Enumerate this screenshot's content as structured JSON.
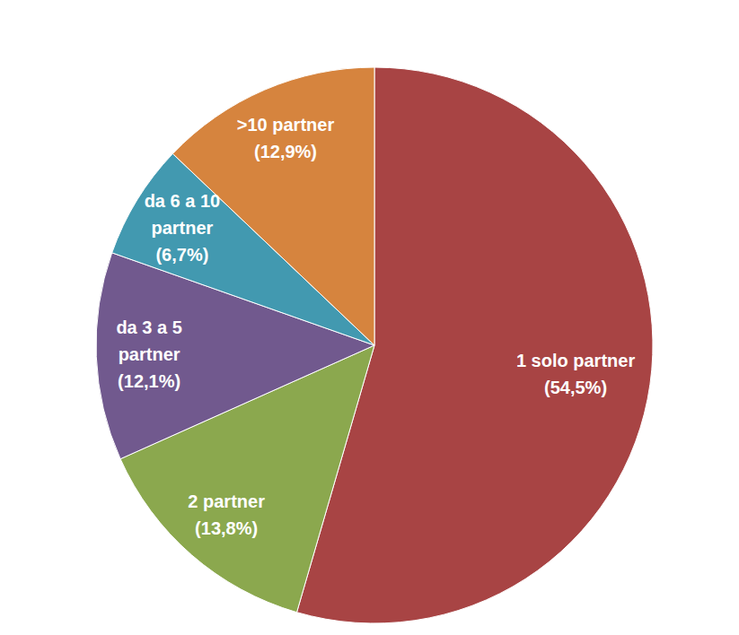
{
  "chart_data": {
    "type": "pie",
    "categories": [
      "1 solo partner",
      "2 partner",
      "da 3 a 5 partner",
      "da 6 a 10 partner",
      ">10 partner"
    ],
    "values": [
      54.5,
      13.8,
      12.1,
      6.7,
      12.9
    ],
    "value_labels": [
      "(54,5%)",
      "(13,8%)",
      "(12,1%)",
      "(6,7%)",
      "(12,9%)"
    ],
    "colors": [
      "#a84444",
      "#8ba84e",
      "#71598e",
      "#4299b0",
      "#d6843e"
    ],
    "data_labels": true
  }
}
